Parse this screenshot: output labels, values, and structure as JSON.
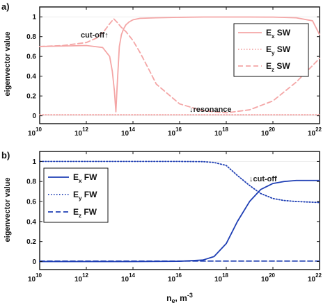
{
  "chart_data": [
    {
      "type": "line",
      "panel_label": "a)",
      "xlabel": "",
      "ylabel": "eigenvector value",
      "xscale": "log",
      "xlim": [
        10000000000.0,
        1e+22
      ],
      "ylim": [
        -0.08,
        1.1
      ],
      "grid": false,
      "legend_position": "top-right",
      "xtick_labels": [
        {
          "base": "10",
          "exp": "10"
        },
        {
          "base": "10",
          "exp": "12"
        },
        {
          "base": "10",
          "exp": "14"
        },
        {
          "base": "10",
          "exp": "16"
        },
        {
          "base": "10",
          "exp": "18"
        },
        {
          "base": "10",
          "exp": "20"
        },
        {
          "base": "10",
          "exp": "22"
        }
      ],
      "ytick_labels": [
        "0",
        "0.2",
        "0.4",
        "0.6",
        "0.8",
        "1"
      ],
      "annotations": [
        "cut-off↑",
        "↓resonance"
      ],
      "series": [
        {
          "name_main": "E",
          "name_sub": "x",
          "name_suffix": " SW",
          "color": "#f4a6a6",
          "style": "solid",
          "width": 1.8,
          "x": [
            10000000000.0,
            100000000000.0,
            1000000000000.0,
            5000000000000.0,
            10000000000000.0,
            13000000000000.0,
            16000000000000.0,
            18500000000000.0,
            21000000000000.0,
            26000000000000.0,
            32000000000000.0,
            40000000000000.0,
            50000000000000.0,
            70000000000000.0,
            100000000000000.0,
            200000000000000.0,
            1000000000000000.0,
            1e+16,
            1e+17,
            1e+18,
            1e+19,
            1e+20,
            1e+21,
            5e+21,
            1e+22
          ],
          "y": [
            0.7,
            0.705,
            0.71,
            0.69,
            0.6,
            0.45,
            0.25,
            0.04,
            0.3,
            0.7,
            0.82,
            0.88,
            0.92,
            0.95,
            0.97,
            0.985,
            0.99,
            0.995,
            0.998,
            0.998,
            0.998,
            0.997,
            0.99,
            0.96,
            0.82
          ]
        },
        {
          "name_main": "E",
          "name_sub": "y",
          "name_suffix": " SW",
          "color": "#f4a6a6",
          "style": "dotted",
          "width": 1.8,
          "x": [
            10000000000.0,
            1e+22
          ],
          "y": [
            0.01,
            0.01
          ]
        },
        {
          "name_main": "E",
          "name_sub": "z",
          "name_suffix": " SW",
          "color": "#f4a6a6",
          "style": "dashed",
          "width": 1.8,
          "x": [
            10000000000.0,
            100000000000.0,
            1000000000000.0,
            3000000000000.0,
            6000000000000.0,
            10000000000000.0,
            15000000000000.0,
            20000000000000.0,
            30000000000000.0,
            50000000000000.0,
            100000000000000.0,
            200000000000000.0,
            500000000000000.0,
            1000000000000000.0,
            1e+16,
            1e+17,
            1e+18,
            1e+19,
            1e+20,
            1e+21,
            1e+22
          ],
          "y": [
            0.7,
            0.71,
            0.74,
            0.79,
            0.86,
            0.93,
            0.98,
            0.95,
            0.9,
            0.85,
            0.76,
            0.64,
            0.46,
            0.32,
            0.12,
            0.05,
            0.03,
            0.06,
            0.15,
            0.34,
            0.58
          ]
        }
      ]
    },
    {
      "type": "line",
      "panel_label": "b)",
      "xlabel_main": "n",
      "xlabel_sub": "e",
      "xlabel_mid": ", m",
      "xlabel_sup": "-3",
      "ylabel": "eigenvector value",
      "xscale": "log",
      "xlim": [
        10000000000.0,
        1e+22
      ],
      "ylim": [
        -0.08,
        1.1
      ],
      "grid": false,
      "legend_position": "top-left",
      "xtick_labels": [
        {
          "base": "10",
          "exp": "10"
        },
        {
          "base": "10",
          "exp": "12"
        },
        {
          "base": "10",
          "exp": "14"
        },
        {
          "base": "10",
          "exp": "16"
        },
        {
          "base": "10",
          "exp": "18"
        },
        {
          "base": "10",
          "exp": "20"
        },
        {
          "base": "10",
          "exp": "22"
        }
      ],
      "ytick_labels": [
        "0",
        "0.2",
        "0.4",
        "0.6",
        "0.8",
        "1"
      ],
      "annotations": [
        "↓cut-off"
      ],
      "series": [
        {
          "name_main": "E",
          "name_sub": "x",
          "name_suffix": " FW",
          "color": "#1f3fb4",
          "style": "solid",
          "width": 1.8,
          "x": [
            10000000000.0,
            100000000000000.0,
            1e+16,
            1e+17,
            3e+17,
            1e+18,
            3e+18,
            1e+19,
            3e+19,
            1e+20,
            3e+20,
            1e+21,
            1e+22
          ],
          "y": [
            0,
            0,
            0.003,
            0.015,
            0.05,
            0.18,
            0.4,
            0.6,
            0.72,
            0.78,
            0.8,
            0.81,
            0.81
          ]
        },
        {
          "name_main": "E",
          "name_sub": "y",
          "name_suffix": " FW",
          "color": "#1f3fb4",
          "style": "dotted",
          "width": 1.8,
          "x": [
            10000000000.0,
            100000000000000.0,
            1e+16,
            1e+17,
            3e+17,
            1e+18,
            3e+18,
            1e+19,
            3e+19,
            1e+20,
            3e+20,
            1e+21,
            1e+22
          ],
          "y": [
            1,
            1,
            1,
            0.998,
            0.99,
            0.96,
            0.86,
            0.76,
            0.68,
            0.63,
            0.61,
            0.6,
            0.59
          ]
        },
        {
          "name_main": "E",
          "name_sub": "z",
          "name_suffix": " FW",
          "color": "#1f3fb4",
          "style": "dashed",
          "width": 1.8,
          "x": [
            10000000000.0,
            1e+22
          ],
          "y": [
            0.005,
            0.005
          ]
        }
      ]
    }
  ]
}
